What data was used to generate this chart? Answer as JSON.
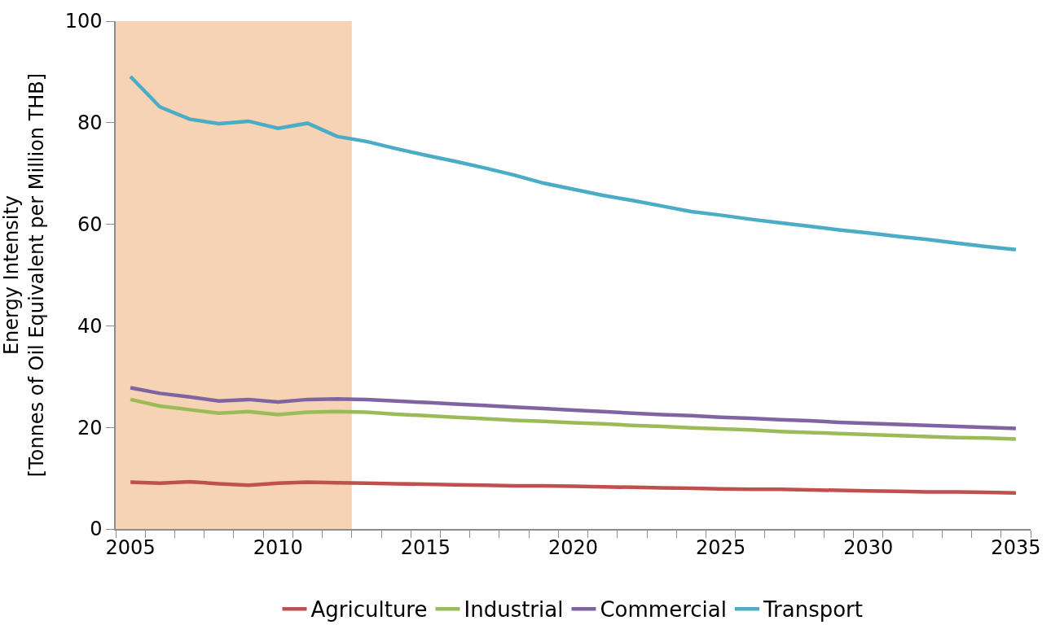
{
  "chart_data": {
    "type": "line",
    "ylabel": "Energy Intensity\n[Tonnes of Oil Equivalent per Million THB]",
    "x": [
      2005,
      2006,
      2007,
      2008,
      2009,
      2010,
      2011,
      2012,
      2013,
      2014,
      2015,
      2016,
      2017,
      2018,
      2019,
      2020,
      2021,
      2022,
      2023,
      2024,
      2025,
      2026,
      2027,
      2028,
      2029,
      2030,
      2031,
      2032,
      2033,
      2034,
      2035
    ],
    "series": [
      {
        "name": "Agriculture",
        "color": "#c0504d",
        "values": [
          9.2,
          9.0,
          9.3,
          8.9,
          8.6,
          9.0,
          9.2,
          9.1,
          9.0,
          8.9,
          8.8,
          8.7,
          8.6,
          8.5,
          8.5,
          8.4,
          8.3,
          8.2,
          8.1,
          8.0,
          7.9,
          7.8,
          7.8,
          7.7,
          7.6,
          7.5,
          7.4,
          7.3,
          7.3,
          7.2,
          7.1
        ]
      },
      {
        "name": "Industrial",
        "color": "#9bbb59",
        "values": [
          25.5,
          24.2,
          23.5,
          22.8,
          23.1,
          22.5,
          23.0,
          23.1,
          23.0,
          22.6,
          22.3,
          22.0,
          21.7,
          21.4,
          21.2,
          20.9,
          20.7,
          20.4,
          20.2,
          19.9,
          19.7,
          19.5,
          19.2,
          19.0,
          18.8,
          18.6,
          18.4,
          18.2,
          18.0,
          17.9,
          17.7
        ]
      },
      {
        "name": "Commercial",
        "color": "#8064a2",
        "values": [
          27.8,
          26.7,
          26.0,
          25.2,
          25.5,
          25.0,
          25.5,
          25.6,
          25.5,
          25.2,
          24.9,
          24.6,
          24.3,
          24.0,
          23.7,
          23.4,
          23.1,
          22.8,
          22.5,
          22.3,
          22.0,
          21.8,
          21.5,
          21.3,
          21.0,
          20.8,
          20.6,
          20.4,
          20.2,
          20.0,
          19.8
        ]
      },
      {
        "name": "Transport",
        "color": "#4bacc6",
        "values": [
          89.1,
          83.1,
          80.7,
          79.8,
          80.3,
          78.9,
          79.9,
          77.3,
          76.3,
          74.9,
          73.6,
          72.4,
          71.1,
          69.7,
          68.1,
          66.9,
          65.7,
          64.7,
          63.6,
          62.5,
          61.8,
          61.0,
          60.3,
          59.6,
          58.9,
          58.3,
          57.6,
          57.0,
          56.3,
          55.6,
          55.0
        ]
      }
    ],
    "xlim": [
      2004.5,
      2035.5
    ],
    "xticks": [
      2005,
      2010,
      2015,
      2020,
      2025,
      2030,
      2035,
      {
        "value": 2004.5,
        "label": null
      },
      {
        "value": 2005.5,
        "label": null
      },
      {
        "value": 2006.5,
        "label": null
      },
      {
        "value": 2007.5,
        "label": null
      },
      {
        "value": 2008.5,
        "label": null
      },
      {
        "value": 2009.5,
        "label": null
      },
      {
        "value": 2010.5,
        "label": null
      },
      {
        "value": 2011.5,
        "label": null
      },
      {
        "value": 2012.5,
        "label": null
      },
      {
        "value": 2013.5,
        "label": null
      },
      {
        "value": 2014.5,
        "label": null
      },
      {
        "value": 2015.5,
        "label": null
      },
      {
        "value": 2016.5,
        "label": null
      },
      {
        "value": 2017.5,
        "label": null
      },
      {
        "value": 2018.5,
        "label": null
      },
      {
        "value": 2019.5,
        "label": null
      },
      {
        "value": 2020.5,
        "label": null
      },
      {
        "value": 2021.5,
        "label": null
      },
      {
        "value": 2022.5,
        "label": null
      },
      {
        "value": 2023.5,
        "label": null
      },
      {
        "value": 2024.5,
        "label": null
      },
      {
        "value": 2025.5,
        "label": null
      },
      {
        "value": 2026.5,
        "label": null
      },
      {
        "value": 2027.5,
        "label": null
      },
      {
        "value": 2028.5,
        "label": null
      },
      {
        "value": 2029.5,
        "label": null
      },
      {
        "value": 2030.5,
        "label": null
      },
      {
        "value": 2031.5,
        "label": null
      },
      {
        "value": 2032.5,
        "label": null
      },
      {
        "value": 2033.5,
        "label": null
      },
      {
        "value": 2034.5,
        "label": null
      },
      {
        "value": 2035.5,
        "label": null
      }
    ],
    "ylim": [
      0,
      100
    ],
    "yticks": [
      0,
      20,
      40,
      60,
      80,
      100
    ],
    "bands": [
      {
        "axis": "x",
        "from": 2004.5,
        "to": 2012.5,
        "color": "#f5d3b4"
      }
    ],
    "legend": "bottom",
    "grid": false,
    "marker": "none",
    "line_style": "solid"
  }
}
